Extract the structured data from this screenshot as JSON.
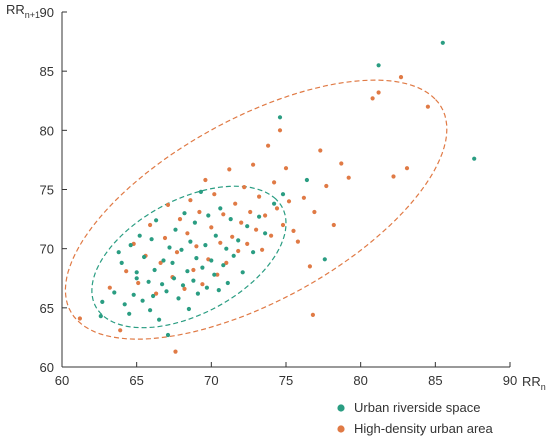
{
  "chart_data": {
    "type": "scatter",
    "xlabel": {
      "base": "RR",
      "sub": "n"
    },
    "ylabel": {
      "base": "RR",
      "sub": "n+1"
    },
    "xlim": [
      60,
      90
    ],
    "ylim": [
      60,
      90
    ],
    "xticks": [
      "60",
      "65",
      "70",
      "75",
      "80",
      "85",
      "90"
    ],
    "yticks": [
      "60",
      "65",
      "70",
      "75",
      "80",
      "85",
      "90"
    ],
    "grid": false,
    "legend_position": "bottom-right",
    "series": [
      {
        "name": "Urban riverside space",
        "color": "#2a9d82",
        "ellipse": {
          "cx": 68.5,
          "cy": 69.3,
          "rx": 7.6,
          "ry": 4.5,
          "angle_deg": 40
        },
        "points": [
          [
            62.6,
            64.3
          ],
          [
            62.7,
            65.5
          ],
          [
            63.5,
            66.3
          ],
          [
            63.8,
            69.7
          ],
          [
            64.0,
            68.8
          ],
          [
            64.2,
            65.3
          ],
          [
            64.5,
            64.5
          ],
          [
            64.6,
            70.3
          ],
          [
            64.8,
            66.1
          ],
          [
            65.0,
            67.5
          ],
          [
            65.0,
            68.0
          ],
          [
            65.2,
            71.1
          ],
          [
            65.4,
            65.6
          ],
          [
            65.5,
            69.3
          ],
          [
            65.8,
            67.2
          ],
          [
            65.9,
            64.8
          ],
          [
            66.0,
            70.8
          ],
          [
            66.1,
            66.0
          ],
          [
            66.2,
            68.2
          ],
          [
            66.3,
            72.4
          ],
          [
            66.5,
            64.0
          ],
          [
            66.7,
            67.0
          ],
          [
            66.8,
            69.0
          ],
          [
            67.0,
            66.4
          ],
          [
            67.1,
            62.7
          ],
          [
            67.2,
            70.1
          ],
          [
            67.4,
            68.8
          ],
          [
            67.5,
            67.5
          ],
          [
            67.6,
            71.6
          ],
          [
            67.8,
            65.8
          ],
          [
            68.0,
            69.9
          ],
          [
            68.1,
            66.9
          ],
          [
            68.2,
            73.0
          ],
          [
            68.4,
            68.1
          ],
          [
            68.5,
            64.9
          ],
          [
            68.6,
            70.6
          ],
          [
            68.8,
            67.3
          ],
          [
            68.9,
            72.2
          ],
          [
            69.0,
            69.2
          ],
          [
            69.1,
            66.2
          ],
          [
            69.3,
            74.8
          ],
          [
            69.4,
            68.4
          ],
          [
            69.6,
            70.3
          ],
          [
            69.7,
            66.7
          ],
          [
            69.8,
            72.8
          ],
          [
            70.0,
            69.0
          ],
          [
            70.2,
            67.8
          ],
          [
            70.3,
            71.1
          ],
          [
            70.5,
            66.5
          ],
          [
            70.6,
            73.4
          ],
          [
            70.8,
            68.6
          ],
          [
            71.0,
            70.0
          ],
          [
            71.1,
            67.1
          ],
          [
            71.3,
            72.5
          ],
          [
            71.5,
            69.4
          ],
          [
            71.8,
            70.7
          ],
          [
            72.1,
            68.0
          ],
          [
            72.4,
            71.9
          ],
          [
            72.8,
            69.7
          ],
          [
            73.2,
            72.7
          ],
          [
            73.6,
            71.3
          ],
          [
            74.2,
            73.8
          ],
          [
            74.6,
            81.1
          ],
          [
            74.8,
            74.6
          ],
          [
            76.4,
            75.8
          ],
          [
            77.6,
            69.1
          ],
          [
            81.2,
            85.5
          ],
          [
            85.5,
            87.4
          ],
          [
            87.6,
            77.6
          ]
        ]
      },
      {
        "name": "High-density urban area",
        "color": "#e07a45",
        "ellipse": {
          "cx": 73.0,
          "cy": 73.3,
          "rx": 15.2,
          "ry": 7.2,
          "angle_deg": 38
        },
        "points": [
          [
            61.2,
            64.1
          ],
          [
            63.2,
            66.7
          ],
          [
            63.9,
            63.1
          ],
          [
            64.3,
            68.1
          ],
          [
            64.8,
            70.4
          ],
          [
            65.1,
            67.1
          ],
          [
            65.6,
            69.4
          ],
          [
            65.9,
            72.0
          ],
          [
            66.3,
            66.2
          ],
          [
            66.6,
            68.8
          ],
          [
            66.9,
            70.9
          ],
          [
            67.1,
            73.7
          ],
          [
            67.4,
            67.6
          ],
          [
            67.6,
            61.3
          ],
          [
            67.7,
            69.7
          ],
          [
            67.9,
            72.5
          ],
          [
            68.2,
            66.6
          ],
          [
            68.4,
            71.3
          ],
          [
            68.6,
            74.1
          ],
          [
            68.8,
            68.2
          ],
          [
            69.0,
            70.2
          ],
          [
            69.2,
            73.1
          ],
          [
            69.4,
            67.0
          ],
          [
            69.6,
            75.8
          ],
          [
            69.8,
            69.1
          ],
          [
            70.0,
            71.8
          ],
          [
            70.2,
            74.6
          ],
          [
            70.4,
            67.8
          ],
          [
            70.6,
            70.5
          ],
          [
            70.8,
            72.9
          ],
          [
            71.0,
            68.8
          ],
          [
            71.2,
            76.7
          ],
          [
            71.4,
            71.0
          ],
          [
            71.6,
            73.8
          ],
          [
            71.8,
            69.8
          ],
          [
            72.0,
            72.2
          ],
          [
            72.2,
            75.2
          ],
          [
            72.4,
            70.4
          ],
          [
            72.6,
            73.1
          ],
          [
            72.8,
            77.1
          ],
          [
            73.0,
            71.6
          ],
          [
            73.2,
            74.4
          ],
          [
            73.4,
            69.9
          ],
          [
            73.6,
            72.8
          ],
          [
            73.8,
            78.7
          ],
          [
            74.0,
            71.1
          ],
          [
            74.2,
            75.6
          ],
          [
            74.4,
            73.4
          ],
          [
            74.6,
            80.0
          ],
          [
            74.8,
            72.0
          ],
          [
            75.0,
            76.8
          ],
          [
            75.2,
            74.0
          ],
          [
            75.5,
            71.5
          ],
          [
            75.8,
            70.6
          ],
          [
            76.2,
            74.3
          ],
          [
            76.6,
            68.5
          ],
          [
            76.9,
            73.1
          ],
          [
            77.3,
            78.3
          ],
          [
            77.7,
            75.3
          ],
          [
            78.2,
            72.0
          ],
          [
            78.7,
            77.2
          ],
          [
            76.8,
            64.4
          ],
          [
            79.2,
            76.0
          ],
          [
            80.8,
            82.7
          ],
          [
            81.2,
            83.2
          ],
          [
            82.2,
            76.1
          ],
          [
            82.7,
            84.5
          ],
          [
            83.1,
            76.8
          ],
          [
            84.5,
            82.0
          ]
        ]
      }
    ]
  }
}
